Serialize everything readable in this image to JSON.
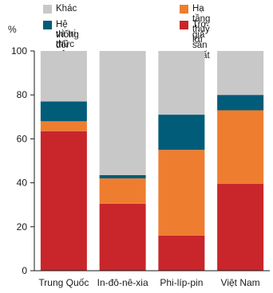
{
  "chart_data": {
    "type": "bar",
    "stacked": true,
    "ylabel": "%",
    "ylim": [
      0,
      100
    ],
    "yticks": [
      "0",
      "20",
      "40",
      "60",
      "80",
      "100"
    ],
    "categories": [
      "Trung Quốc",
      "In-đô-nê-xia",
      "Phi-líp-pin",
      "Việt Nam"
    ],
    "grid": false,
    "legend_position": "top",
    "series": [
      {
        "name": "Trợ giá sản xuất",
        "color": "#c8262b",
        "values": [
          63.5,
          30.5,
          16,
          39.5
        ]
      },
      {
        "name": "Hạ tầng thuỷ lợi",
        "color": "#ee7d30",
        "values": [
          4.5,
          11.5,
          39,
          33.5
        ]
      },
      {
        "name": "Hệ thống đổi mới sáng tạo và tri thức nông nghiệp",
        "color": "#005c78",
        "values": [
          9,
          1.5,
          16,
          7
        ]
      },
      {
        "name": "Khác",
        "color": "#c8c8c8",
        "values": [
          23,
          56.5,
          29,
          20
        ]
      }
    ]
  },
  "legend": {
    "items": [
      {
        "label": "Khác",
        "color": "#c8c8c8"
      },
      {
        "label": "Hạ tầng thuỷ lợi",
        "color": "#ee7d30"
      },
      {
        "label": "Hệ thống đổi mới sáng tạo",
        "label2": "và tri thức nông nghiệp",
        "color": "#005c78"
      },
      {
        "label": "Trợ giá sản xuất",
        "color": "#c8262b"
      }
    ]
  }
}
